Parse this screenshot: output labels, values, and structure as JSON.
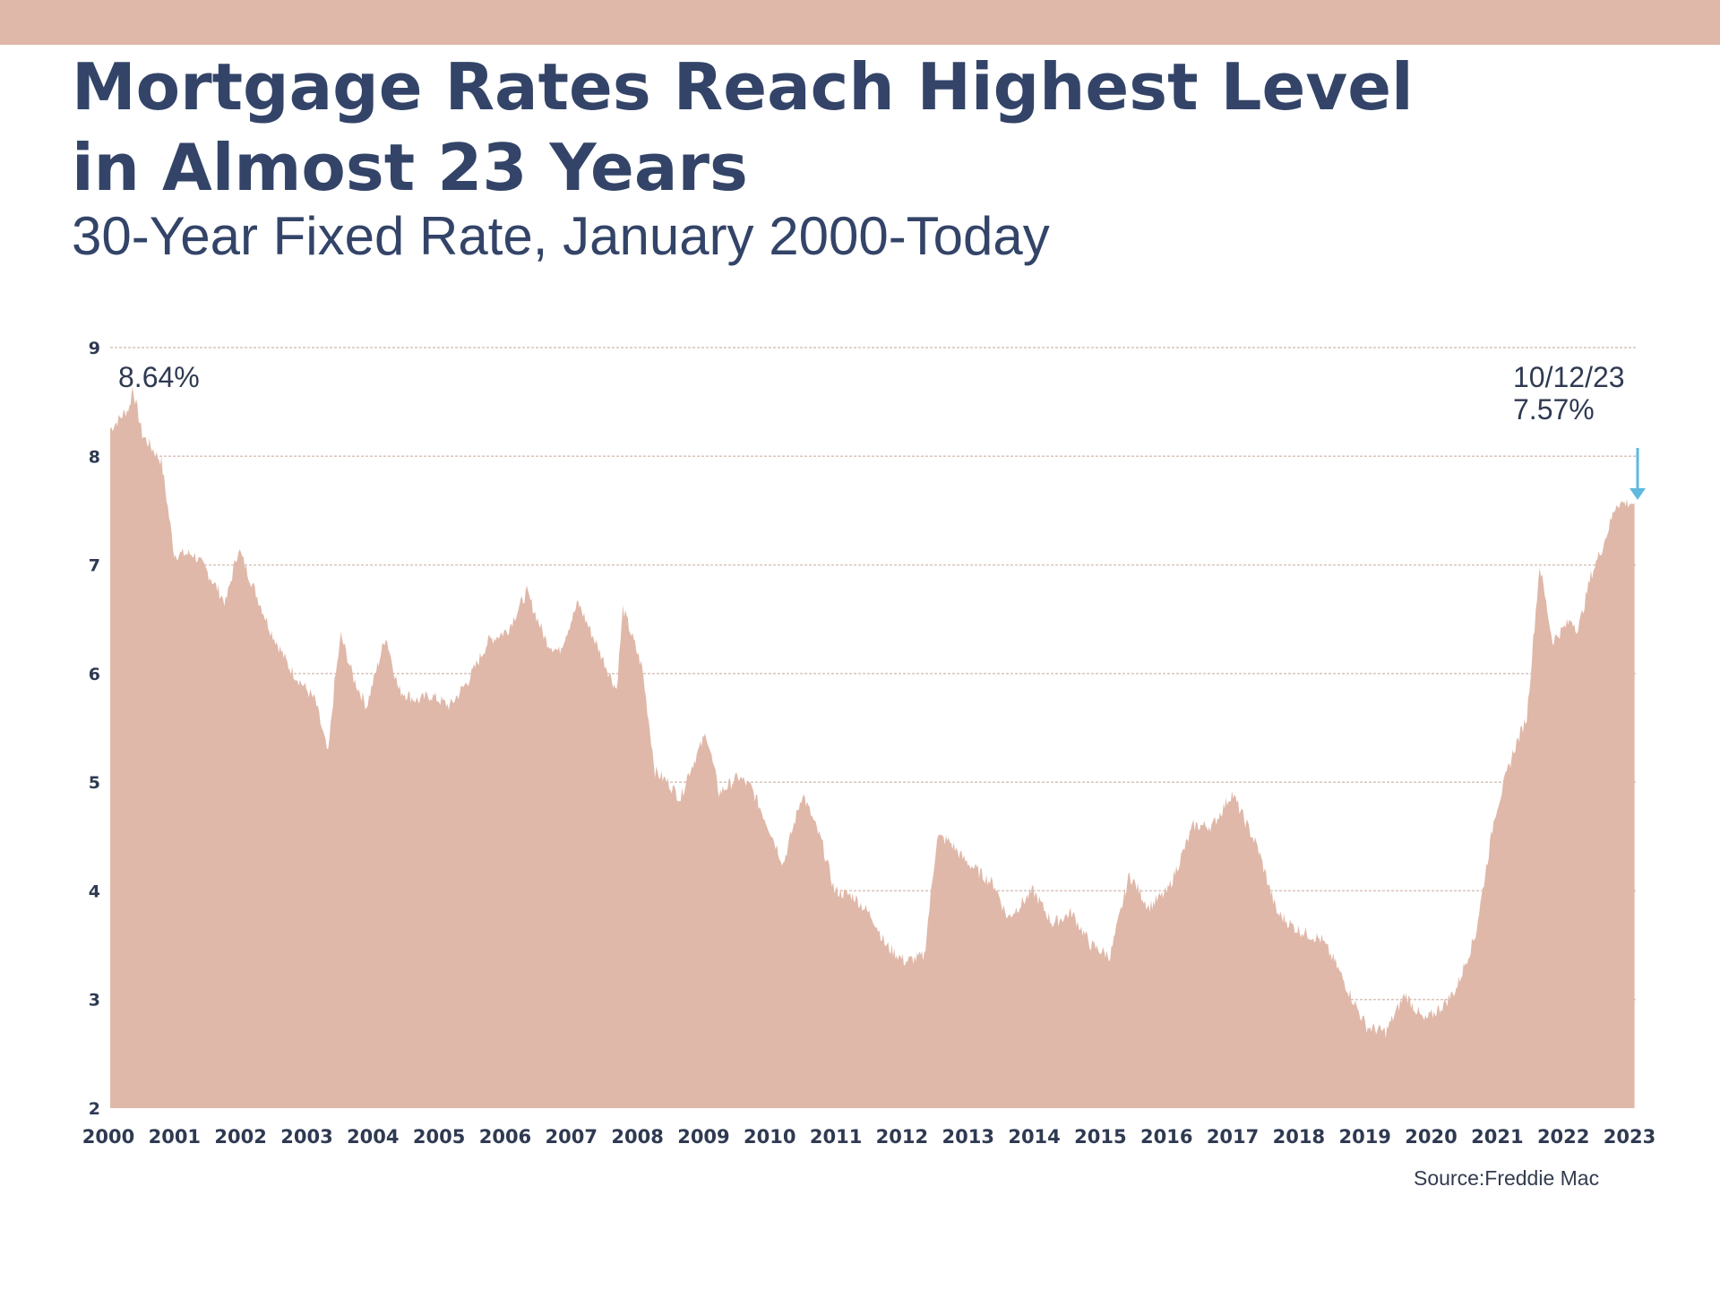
{
  "colors": {
    "band": "#dfb8a9",
    "area": "#dfb8a9",
    "title": "#334468",
    "axis_text": "#2f3a52",
    "gridline": "#d9c4bb",
    "arrow": "#5fb8dd"
  },
  "header": {
    "title_line1": "Mortgage Rates Reach Highest Level",
    "title_line2": "in Almost 23 Years",
    "subtitle": "30-Year Fixed Rate, January 2000-Today"
  },
  "source": "Source:Freddie Mac",
  "chart_data": {
    "type": "area",
    "title": "Mortgage Rates Reach Highest Level in Almost 23 Years",
    "subtitle": "30-Year Fixed Rate, January 2000-Today",
    "xlabel": "",
    "ylabel": "",
    "ylim": [
      2,
      9
    ],
    "yticks": [
      2,
      3,
      4,
      5,
      6,
      7,
      8,
      9
    ],
    "grid": true,
    "x_tick_labels": [
      "2000",
      "2001",
      "2002",
      "2003",
      "2004",
      "2005",
      "2006",
      "2007",
      "2008",
      "2009",
      "2010",
      "2011",
      "2012",
      "2013",
      "2014",
      "2015",
      "2016",
      "2017",
      "2018",
      "2019",
      "2020",
      "2021",
      "2022",
      "2023"
    ],
    "series": [
      {
        "name": "30-Year Fixed Rate",
        "x": [
          2000.0,
          2000.3,
          2000.35,
          2000.5,
          2000.8,
          2001.0,
          2001.3,
          2001.5,
          2001.8,
          2002.0,
          2002.2,
          2002.5,
          2002.8,
          2003.0,
          2003.2,
          2003.4,
          2003.5,
          2003.6,
          2003.8,
          2004.0,
          2004.3,
          2004.5,
          2004.8,
          2005.0,
          2005.3,
          2005.6,
          2005.9,
          2006.2,
          2006.5,
          2006.8,
          2007.0,
          2007.3,
          2007.6,
          2007.9,
          2008.0,
          2008.3,
          2008.5,
          2008.7,
          2008.9,
          2009.0,
          2009.3,
          2009.5,
          2009.8,
          2010.0,
          2010.3,
          2010.5,
          2010.8,
          2011.1,
          2011.3,
          2011.6,
          2011.9,
          2012.1,
          2012.4,
          2012.7,
          2012.9,
          2013.1,
          2013.3,
          2013.5,
          2013.8,
          2014.0,
          2014.4,
          2014.7,
          2015.0,
          2015.3,
          2015.6,
          2015.9,
          2016.2,
          2016.5,
          2016.8,
          2016.9,
          2017.2,
          2017.5,
          2017.9,
          2018.2,
          2018.5,
          2018.9,
          2019.1,
          2019.4,
          2019.6,
          2019.9,
          2020.2,
          2020.5,
          2020.8,
          2021.0,
          2021.3,
          2021.6,
          2021.9,
          2022.1,
          2022.3,
          2022.5,
          2022.8,
          2022.9,
          2023.1,
          2023.3,
          2023.5,
          2023.7,
          2023.78
        ],
        "values": [
          8.25,
          8.45,
          8.64,
          8.2,
          7.95,
          7.1,
          7.1,
          6.95,
          6.65,
          7.15,
          6.85,
          6.4,
          6.05,
          5.9,
          5.75,
          5.25,
          5.9,
          6.35,
          5.95,
          5.7,
          6.35,
          5.85,
          5.75,
          5.8,
          5.7,
          5.95,
          6.3,
          6.4,
          6.75,
          6.3,
          6.2,
          6.65,
          6.25,
          5.85,
          6.6,
          6.05,
          5.1,
          5.0,
          4.85,
          5.05,
          5.45,
          4.9,
          5.05,
          4.95,
          4.55,
          4.25,
          4.9,
          4.45,
          4.0,
          3.95,
          3.75,
          3.5,
          3.35,
          3.4,
          4.5,
          4.45,
          4.3,
          4.2,
          4.05,
          3.75,
          4.0,
          3.7,
          3.8,
          3.5,
          3.4,
          4.15,
          3.85,
          4.0,
          4.45,
          4.6,
          4.6,
          4.9,
          4.4,
          3.8,
          3.65,
          3.55,
          3.35,
          2.98,
          2.75,
          2.7,
          3.05,
          2.8,
          2.95,
          3.1,
          3.6,
          4.7,
          5.3,
          5.6,
          7.0,
          6.3,
          6.5,
          6.4,
          6.9,
          7.2,
          7.57,
          7.57,
          7.57
        ]
      }
    ],
    "annotations": [
      {
        "label": "8.64%",
        "x": 2000.35,
        "y": 8.64
      },
      {
        "label_line1": "10/12/23",
        "label_line2": "7.57%",
        "x": 2023.78,
        "y": 7.57
      }
    ]
  }
}
